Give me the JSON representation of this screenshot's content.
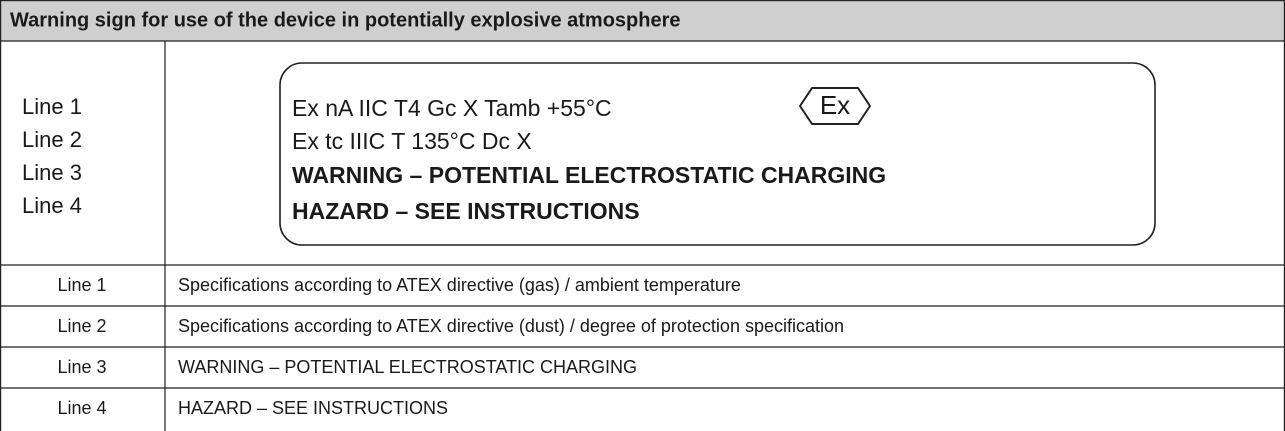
{
  "header": {
    "title": "Warning sign for use of the device in potentially explosive atmosphere"
  },
  "sign": {
    "line_labels": [
      "Line 1",
      "Line 2",
      "Line 3",
      "Line 4"
    ],
    "lines": [
      "Ex nA IIC T4 Gc X Tamb +55°C",
      "Ex tc IIIC T 135°C Dc X",
      "WARNING – POTENTIAL ELECTROSTATIC CHARGING",
      "HAZARD – SEE INSTRUCTIONS"
    ],
    "symbol": "Ex"
  },
  "table": {
    "rows": [
      [
        "Line 1",
        "Specifications according to ATEX directive (gas) / ambient temperature"
      ],
      [
        "Line 2",
        "Specifications according to ATEX directive (dust) / degree of protection specification"
      ],
      [
        "Line 3",
        "WARNING – POTENTIAL ELECTROSTATIC CHARGING"
      ],
      [
        "Line 4",
        "HAZARD – SEE INSTRUCTIONS"
      ]
    ]
  }
}
